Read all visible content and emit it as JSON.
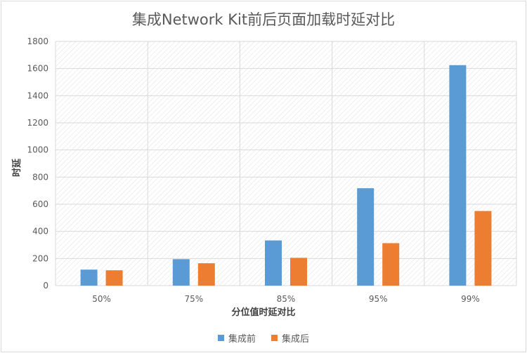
{
  "chart_data": {
    "type": "bar",
    "title": "集成Network Kit前后页面加载时延对比",
    "xlabel": "分位值时延对比",
    "ylabel": "时延",
    "categories": [
      "50%",
      "75%",
      "85%",
      "95%",
      "99%"
    ],
    "series": [
      {
        "name": "集成前",
        "values": [
          118,
          195,
          333,
          718,
          1625
        ],
        "color": "#5b9bd5"
      },
      {
        "name": "集成后",
        "values": [
          113,
          165,
          205,
          313,
          550
        ],
        "color": "#ed7d31"
      }
    ],
    "ylim": [
      0,
      1800
    ],
    "yticks": [
      0,
      200,
      400,
      600,
      800,
      1000,
      1200,
      1400,
      1600,
      1800
    ],
    "grid": true,
    "legend_position": "bottom"
  }
}
